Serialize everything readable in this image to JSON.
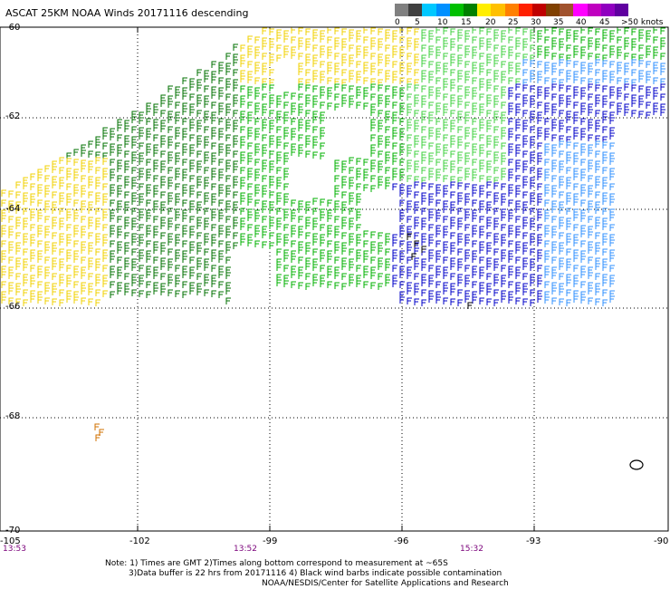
{
  "title": "ASCAT 25KM NOAA Winds 20171116 descending",
  "legend": {
    "labels": [
      "0",
      "5",
      "10",
      "15",
      "20",
      "25",
      "30",
      "35",
      "40",
      "45",
      ">50 knots"
    ],
    "colors": [
      "#808080",
      "#404040",
      "#00c8ff",
      "#0090ff",
      "#00c000",
      "#008000",
      "#ffee00",
      "#ffc000",
      "#ff8000",
      "#ff2000",
      "#c00000",
      "#804000",
      "#a0522d",
      "#ff00ff",
      "#c000c0",
      "#9000c0",
      "#6000a0"
    ]
  },
  "lat_labels": [
    "-60",
    "-62",
    "-64",
    "-66",
    "-68",
    "-70"
  ],
  "lon_labels": [
    "-105",
    "-102",
    "-99",
    "-96",
    "-93",
    "-90"
  ],
  "time_labels": [
    "13:53",
    "13:52",
    "15:32"
  ],
  "notes": {
    "line1": "Note: 1) Times are GMT 2)Times along bottom correspond to measurement at ~65S",
    "line2": "3)Data buffer is 22 hrs from 20171116 4) Black wind barbs indicate possible contamination",
    "line3": "NOAA/NESDIS/Center for Satellite Applications and Research"
  },
  "wind_colors": {
    "yellow": "#f0d000",
    "gold": "#e0b000",
    "dark_green": "#007000",
    "green": "#00b000",
    "light_green": "#40d040",
    "blue": "#0000c8",
    "light_blue": "#3090ff",
    "black": "#000000",
    "orange": "#d07000"
  }
}
